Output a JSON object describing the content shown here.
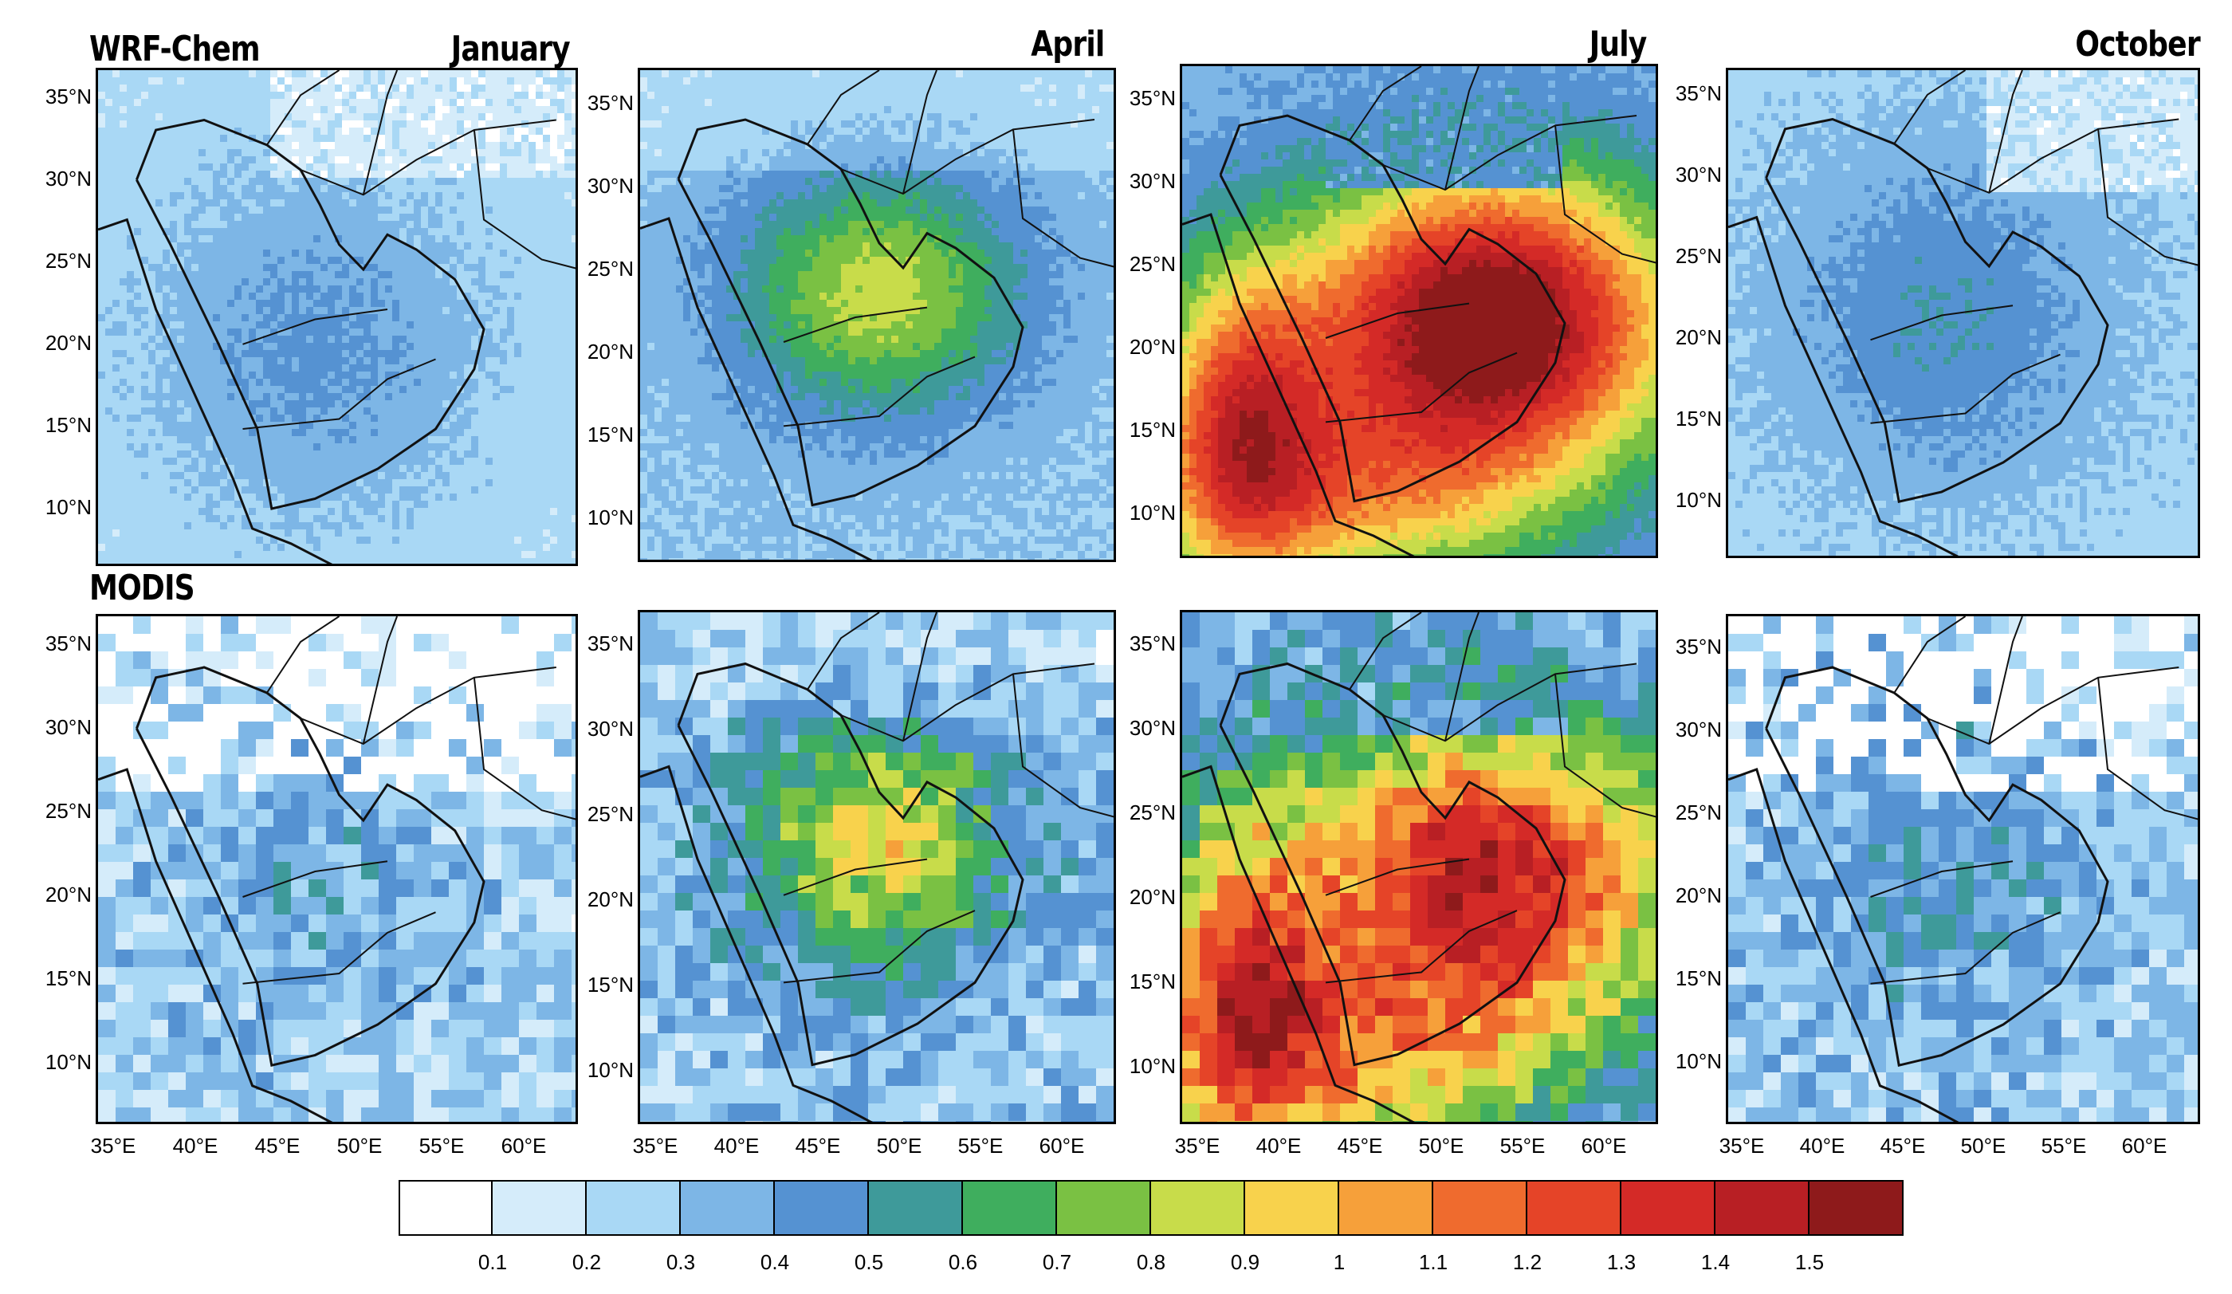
{
  "row_labels": {
    "model": "WRF-Chem",
    "obs": "MODIS"
  },
  "months": [
    "January",
    "April",
    "July",
    "October"
  ],
  "lat_ticks": [
    "35°N",
    "30°N",
    "25°N",
    "20°N",
    "15°N",
    "10°N"
  ],
  "lon_ticks": [
    "35°E",
    "40°E",
    "45°E",
    "50°E",
    "55°E",
    "60°E"
  ],
  "colorbar": {
    "colors": [
      "#ffffff",
      "#d5ecfa",
      "#a9d8f5",
      "#7db6e6",
      "#5592d2",
      "#3e9a9a",
      "#3fae5e",
      "#7ac143",
      "#c8dc4a",
      "#f8d24c",
      "#f6a03a",
      "#ef6b2e",
      "#e54428",
      "#d42a27",
      "#b81f24",
      "#8e1a1b"
    ],
    "labels": [
      "0.1",
      "0.2",
      "0.3",
      "0.4",
      "0.5",
      "0.6",
      "0.7",
      "0.8",
      "0.9",
      "1",
      "1.1",
      "1.2",
      "1.3",
      "1.4",
      "1.5"
    ]
  },
  "monthly_intensity": {
    "model": {
      "January": 0.35,
      "April": 0.55,
      "July": 1.35,
      "October": 0.4
    },
    "obs": {
      "January": 0.3,
      "April": 0.6,
      "July": 1.1,
      "October": 0.35
    }
  }
}
